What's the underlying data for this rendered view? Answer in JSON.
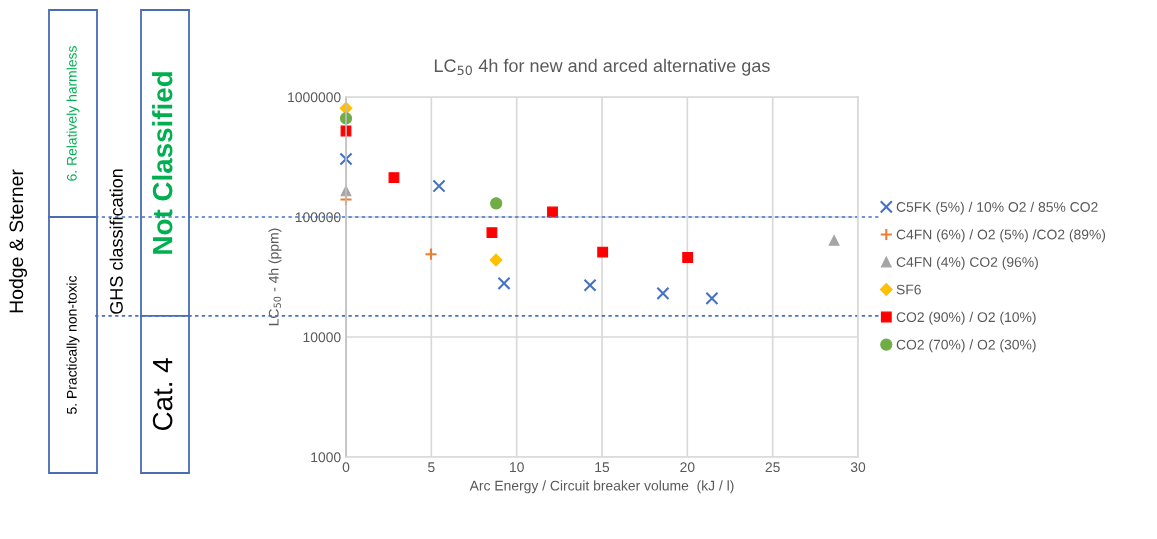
{
  "chart_data": {
    "type": "scatter",
    "title": "LC$_{50}$ 4h for new and arced alternative gas",
    "xlabel": "Arc Energy / Circuit breaker volume  (kJ / l)",
    "ylabel": "LC$_{50}$ - 4h (ppm)",
    "log": "y",
    "xlim": [
      0,
      30
    ],
    "xticks": [
      0,
      5,
      10,
      15,
      20,
      25,
      30
    ],
    "ylim": [
      1000,
      1000000
    ],
    "yticks": [
      1000,
      10000,
      100000,
      1000000
    ],
    "grid": true,
    "legend": "right",
    "series": [
      {
        "name": "C5FK (5%) / 10% O2 / 85% CO2",
        "color": "#4472c4",
        "marker": "x",
        "x": [
          0,
          5.45,
          9.26,
          14.3,
          18.57,
          21.44
        ],
        "values": [
          304000,
          181000,
          28000,
          27000,
          23100,
          21000
        ]
      },
      {
        "name": "C4FN (6%) / O2 (5%) /CO2 (89%)",
        "color": "#ed7d31",
        "marker": "plus",
        "x": [
          0,
          4.98
        ],
        "values": [
          140000,
          49000
        ]
      },
      {
        "name": "C4FN (4%) CO2 (96%)",
        "color": "#a5a5a5",
        "marker": "triangle",
        "x": [
          0,
          28.6
        ],
        "values": [
          165000,
          64000
        ]
      },
      {
        "name": "SF6",
        "color": "#ffc000",
        "marker": "diamond",
        "x": [
          0,
          8.79
        ],
        "values": [
          806000,
          43800
        ]
      },
      {
        "name": "CO2 (90%) / O2 (10%)",
        "color": "#ff0000",
        "marker": "square",
        "x": [
          0,
          2.81,
          8.55,
          12.1,
          15.04,
          20.02
        ],
        "values": [
          521000,
          213000,
          74000,
          110000,
          51000,
          46000
        ]
      },
      {
        "name": "CO2 (70%) / O2 (30%)",
        "color": "#70ad47",
        "marker": "circle",
        "x": [
          0,
          8.8
        ],
        "values": [
          664000,
          130000
        ]
      }
    ],
    "ref_lines": [
      {
        "axis": "y",
        "value": 100000,
        "label": null,
        "color": "#4472c4",
        "line_style": "dotted"
      },
      {
        "axis": "y",
        "value": 15000,
        "label": null,
        "color": "#4472c4",
        "line_style": "dotted"
      }
    ],
    "annotations": [
      "Hodge & Sterner",
      "6. Relatively harmless",
      "5. Practically non-toxic",
      "GHS classification",
      "Not Classified",
      "Cat. 4"
    ]
  }
}
